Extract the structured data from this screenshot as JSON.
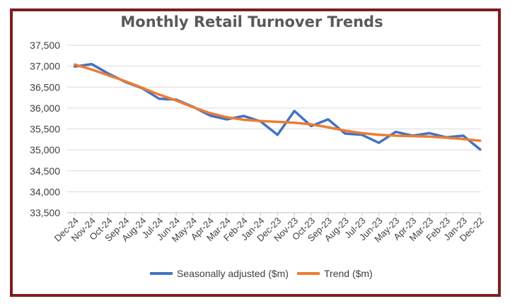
{
  "chart_data": {
    "type": "line",
    "title": "Monthly Retail Turnover Trends",
    "xlabel": "",
    "ylabel": "",
    "ylim": [
      33500,
      37500
    ],
    "yticks": [
      "33,500",
      "34,000",
      "34,500",
      "35,000",
      "35,500",
      "36,000",
      "36,500",
      "37,000",
      "37,500"
    ],
    "ytick_values": [
      33500,
      34000,
      34500,
      35000,
      35500,
      36000,
      36500,
      37000,
      37500
    ],
    "grid": true,
    "legend_position": "bottom",
    "categories": [
      "Dec-24",
      "Nov-24",
      "Oct-24",
      "Sep-24",
      "Aug-24",
      "Jul-24",
      "Jun-24",
      "May-24",
      "Apr-24",
      "Mar-24",
      "Feb-24",
      "Jan-24",
      "Dec-23",
      "Nov-23",
      "Oct-23",
      "Sep-23",
      "Aug-23",
      "Jul-23",
      "Jun-23",
      "May-23",
      "Apr-23",
      "Mar-23",
      "Feb-23",
      "Jan-23",
      "Dec-22"
    ],
    "series": [
      {
        "name": "Seasonally adjusted ($m)",
        "color": "#4472c4",
        "values": [
          36990,
          37050,
          36820,
          36620,
          36470,
          36220,
          36200,
          36030,
          35820,
          35730,
          35810,
          35680,
          35360,
          35930,
          35570,
          35730,
          35390,
          35360,
          35170,
          35430,
          35340,
          35400,
          35300,
          35340,
          35010
        ]
      },
      {
        "name": "Trend ($m)",
        "color": "#ed7d31",
        "values": [
          37040,
          36920,
          36780,
          36640,
          36480,
          36320,
          36180,
          36020,
          35880,
          35780,
          35720,
          35690,
          35670,
          35650,
          35610,
          35540,
          35460,
          35400,
          35360,
          35340,
          35330,
          35320,
          35290,
          35260,
          35220
        ]
      }
    ]
  }
}
